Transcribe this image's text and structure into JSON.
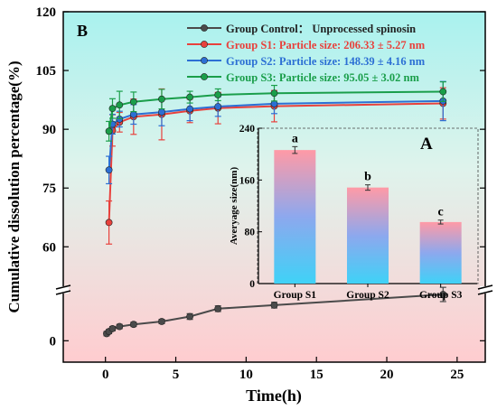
{
  "chart_data": [
    {
      "panel_label": "B",
      "type": "line",
      "xlabel": "Time(h)",
      "ylabel": "Cumulative dissolution percentage(%)",
      "xlim": [
        -3,
        27
      ],
      "x_ticks": [
        0,
        5,
        10,
        15,
        20,
        25
      ],
      "y_axis_broken": true,
      "y_lower_range": [
        -3,
        6
      ],
      "y_upper_range": [
        52,
        120
      ],
      "y_ticks": [
        0,
        60,
        75,
        90,
        105,
        120
      ],
      "legend_position": "top-right",
      "grid": false,
      "background": "vertical gradient from cyan (top) to pink (bottom)",
      "series": [
        {
          "name": "Group Control： Unprocessed spinosin",
          "color": "#4a4a4a",
          "x": [
            0.083,
            0.25,
            0.5,
            1,
            2,
            4,
            6,
            8,
            12,
            24
          ],
          "y": [
            1.0,
            1.3,
            1.7,
            2.0,
            2.3,
            2.7,
            3.4,
            4.5,
            5.0,
            6.5
          ],
          "err": [
            0.3,
            0.3,
            0.3,
            0.3,
            0.3,
            0.3,
            0.4,
            0.4,
            0.4,
            1.0
          ]
        },
        {
          "name": "Group S1: Particle size: 206.33 ± 5.27 nm",
          "color": "#e8413c",
          "x": [
            0.25,
            0.5,
            1,
            2,
            4,
            6,
            8,
            12,
            24
          ],
          "y": [
            66.2,
            89.7,
            91.8,
            93.2,
            93.8,
            94.7,
            95.4,
            95.9,
            96.6
          ],
          "err": [
            5.5,
            4.0,
            2.5,
            4.5,
            6.5,
            3.0,
            4.0,
            4.0,
            4.0
          ]
        },
        {
          "name": "Group S2: Particle size: 148.39 ± 4.16 nm",
          "color": "#2c6fd4",
          "x": [
            0.25,
            0.5,
            1,
            2,
            4,
            6,
            8,
            12,
            24
          ],
          "y": [
            79.6,
            91.3,
            92.6,
            93.8,
            94.4,
            95.2,
            95.8,
            96.5,
            97.2
          ],
          "err": [
            3.5,
            2.5,
            2.0,
            2.5,
            3.5,
            3.0,
            2.5,
            2.5,
            5.0
          ]
        },
        {
          "name": "Group S3: Particle size: 95.05 ± 3.02 nm",
          "color": "#1a9e4a",
          "x": [
            0.25,
            0.5,
            1,
            2,
            4,
            6,
            8,
            12,
            24
          ],
          "y": [
            89.5,
            95.3,
            96.2,
            97.0,
            97.7,
            98.2,
            98.8,
            99.2,
            99.6
          ],
          "err": [
            2.5,
            2.5,
            3.5,
            2.5,
            2.5,
            1.5,
            1.5,
            2.0,
            2.5
          ]
        }
      ]
    },
    {
      "panel_label": "A",
      "type": "bar",
      "ylabel": "Averyage size(nm)",
      "categories": [
        "Group S1",
        "Group S2",
        "Group S3"
      ],
      "values": [
        206.33,
        148.39,
        95.05
      ],
      "errors": [
        5.27,
        4.16,
        3.02
      ],
      "significance_letters": [
        "a",
        "b",
        "c"
      ],
      "ylim": [
        0,
        240
      ],
      "y_ticks": [
        0,
        80,
        160,
        240
      ],
      "bar_gradient": [
        "#ff9aa6",
        "#8da8ee",
        "#3fd2f7"
      ]
    }
  ]
}
